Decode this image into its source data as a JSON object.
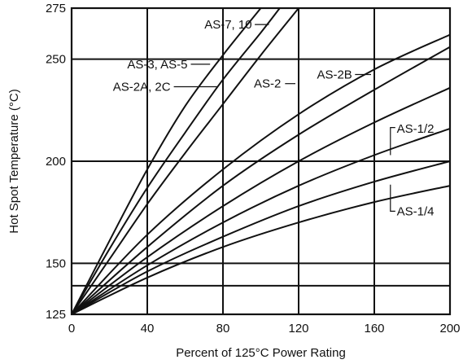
{
  "chart_data": {
    "type": "line",
    "title": "",
    "xlabel": "Percent of 125°C Power Rating",
    "ylabel": "Hot Spot Temperature (°C)",
    "xlim": [
      0,
      200
    ],
    "ylim": [
      125,
      275
    ],
    "x_ticks": [
      "0",
      "40",
      "80",
      "120",
      "160",
      "200"
    ],
    "y_ticks": [
      "125",
      "150",
      "200",
      "250",
      "275"
    ],
    "grid": true,
    "series": [
      {
        "x": [
          0,
          20,
          40,
          60,
          80,
          100
        ],
        "y": [
          125,
          161,
          196,
          227,
          252,
          275
        ]
      },
      {
        "x": [
          0,
          20,
          40,
          60,
          80,
          100,
          110
        ],
        "y": [
          125,
          157,
          187,
          214,
          240,
          263,
          275
        ]
      },
      {
        "x": [
          0,
          20,
          40,
          60,
          80,
          100,
          120
        ],
        "y": [
          125,
          152,
          179,
          204,
          228,
          252,
          275
        ]
      },
      {
        "x": [
          0,
          40,
          80,
          120,
          160,
          200
        ],
        "y": [
          125,
          164,
          196,
          223,
          245,
          262
        ]
      },
      {
        "x": [
          0,
          40,
          80,
          120,
          160,
          200
        ],
        "y": [
          125,
          158,
          188,
          213,
          235,
          256
        ]
      },
      {
        "x": [
          0,
          40,
          80,
          120,
          160,
          200
        ],
        "y": [
          125,
          153,
          178,
          200,
          219,
          236
        ]
      },
      {
        "x": [
          0,
          40,
          80,
          120,
          160,
          200
        ],
        "y": [
          125,
          149,
          170,
          188,
          203,
          216
        ]
      },
      {
        "x": [
          0,
          40,
          80,
          120,
          160,
          200
        ],
        "y": [
          125,
          146,
          163,
          178,
          190,
          200
        ]
      },
      {
        "x": [
          0,
          40,
          80,
          120,
          160,
          200
        ],
        "y": [
          125,
          143,
          158,
          170,
          180,
          188
        ]
      }
    ],
    "annotations": [
      {
        "text": "AS-7, 10",
        "x": 95.3,
        "y": 267.0,
        "anchor": "end",
        "leader": [
          [
            96.8,
            267.0
          ],
          [
            104.3,
            267.0
          ]
        ]
      },
      {
        "text": "AS-3, AS-5",
        "x": 61.3,
        "y": 247.5,
        "anchor": "end",
        "leader": [
          [
            63.0,
            247.5
          ],
          [
            73.2,
            247.5
          ]
        ]
      },
      {
        "text": "AS-2A, 2C",
        "x": 52.3,
        "y": 236.5,
        "anchor": "end",
        "leader": [
          [
            54.0,
            236.5
          ],
          [
            77.4,
            236.5
          ]
        ]
      },
      {
        "text": "AS-2",
        "x": 110.7,
        "y": 238.0,
        "anchor": "end",
        "leader": [
          [
            112.8,
            238.0
          ],
          [
            118.3,
            238.0
          ]
        ]
      },
      {
        "text": "AS-2B",
        "x": 148.3,
        "y": 242.5,
        "anchor": "end",
        "leader": [
          [
            149.8,
            242.5
          ],
          [
            158.3,
            242.5
          ]
        ]
      },
      {
        "text": "AS-1/2",
        "x": 171.9,
        "y": 216.0,
        "anchor": "start",
        "leader": [
          [
            168.5,
            203.0
          ],
          [
            168.5,
            216.5
          ],
          [
            171.1,
            216.5
          ]
        ]
      },
      {
        "text": "AS-1/4",
        "x": 171.9,
        "y": 175.5,
        "anchor": "start",
        "leader": [
          [
            168.5,
            188.5
          ],
          [
            168.5,
            175.5
          ],
          [
            171.1,
            175.5
          ]
        ]
      }
    ]
  }
}
